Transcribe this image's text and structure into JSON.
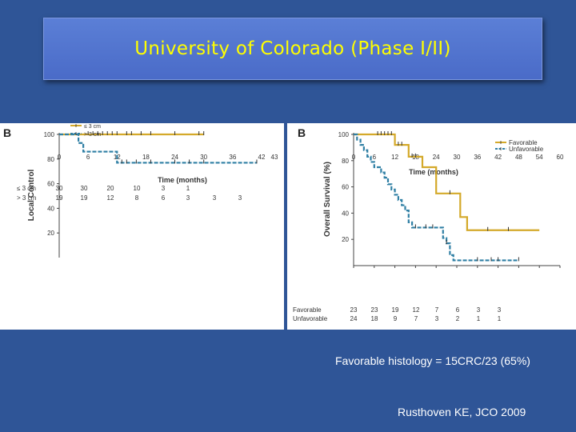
{
  "slide": {
    "title": "University of Colorado (Phase I/II)",
    "caption_histology": "Favorable histology = 15CRC/23 (65%)",
    "caption_citation": "Rusthoven KE, JCO 2009"
  },
  "colors": {
    "background": "#2f5597",
    "title_text": "#ffff00",
    "series_gold": "#d4a92a",
    "series_blue": "#2f7fa4"
  },
  "chart_data": [
    {
      "type": "line",
      "panel_label": "B",
      "title": "",
      "xlabel": "Time (months)",
      "ylabel": "Local Control",
      "xlim": [
        0,
        43
      ],
      "ylim": [
        0,
        100
      ],
      "x_ticks": [
        0,
        6,
        12,
        18,
        24,
        30,
        36,
        42,
        43
      ],
      "y_ticks": [
        20,
        40,
        60,
        80,
        100
      ],
      "legend_position": "bottom-left",
      "series": [
        {
          "name": "≤ 3 cm",
          "color": "#d4a92a",
          "style": "solid",
          "steps": [
            [
              0,
              100
            ],
            [
              30,
              100
            ]
          ],
          "censor": [
            6,
            7,
            8,
            9,
            10,
            11,
            12,
            14,
            15,
            17,
            19,
            24,
            29,
            30
          ]
        },
        {
          "name": "> 3 cm",
          "color": "#2f7fa4",
          "style": "dashed",
          "steps": [
            [
              0,
              100
            ],
            [
              4,
              93
            ],
            [
              5,
              86
            ],
            [
              11,
              86
            ],
            [
              12,
              77
            ],
            [
              41,
              77
            ]
          ],
          "censor": [
            13,
            14,
            16,
            19,
            24,
            27,
            30,
            41
          ]
        }
      ],
      "at_risk": {
        "rows": [
          {
            "label": "≤ 3 cm",
            "values": [
              "30",
              "30",
              "20",
              "10",
              "3",
              "1",
              "",
              ""
            ]
          },
          {
            "label": "> 3 cm",
            "values": [
              "19",
              "19",
              "12",
              "8",
              "6",
              "3",
              "3",
              "3"
            ]
          }
        ]
      }
    },
    {
      "type": "line",
      "panel_label": "B",
      "title": "",
      "xlabel": "Time (months)",
      "ylabel": "Overall Survival (%)",
      "xlim": [
        0,
        60
      ],
      "ylim": [
        0,
        100
      ],
      "x_ticks": [
        0,
        6,
        12,
        18,
        24,
        30,
        36,
        42,
        48,
        54,
        60
      ],
      "y_ticks": [
        20,
        40,
        60,
        80,
        100
      ],
      "legend_position": "top-right",
      "series": [
        {
          "name": "Favorable",
          "color": "#d4a92a",
          "style": "solid",
          "steps": [
            [
              0,
              100
            ],
            [
              11,
              100
            ],
            [
              12,
              92
            ],
            [
              15,
              92
            ],
            [
              16,
              83
            ],
            [
              19,
              83
            ],
            [
              20,
              75
            ],
            [
              23,
              75
            ],
            [
              24,
              55
            ],
            [
              30,
              55
            ],
            [
              31,
              37
            ],
            [
              32,
              37
            ],
            [
              33,
              27
            ],
            [
              54,
              27
            ]
          ],
          "censor": [
            7,
            8,
            9,
            10,
            11,
            13,
            14,
            17,
            18,
            28,
            39,
            45
          ]
        },
        {
          "name": "Unfavorable",
          "color": "#2f7fa4",
          "style": "dashed",
          "steps": [
            [
              0,
              100
            ],
            [
              1,
              96
            ],
            [
              2,
              92
            ],
            [
              3,
              88
            ],
            [
              4,
              83
            ],
            [
              5,
              79
            ],
            [
              6,
              75
            ],
            [
              8,
              71
            ],
            [
              9,
              67
            ],
            [
              10,
              62
            ],
            [
              11,
              58
            ],
            [
              12,
              54
            ],
            [
              13,
              50
            ],
            [
              14,
              46
            ],
            [
              15,
              42
            ],
            [
              16,
              33
            ],
            [
              17,
              29
            ],
            [
              25,
              29
            ],
            [
              26,
              21
            ],
            [
              27,
              17
            ],
            [
              28,
              8
            ],
            [
              29,
              4
            ],
            [
              48,
              4
            ]
          ],
          "censor": [
            18,
            21,
            23,
            27,
            36,
            40,
            42,
            48
          ]
        }
      ],
      "at_risk": {
        "rows": [
          {
            "label": "Favorable",
            "values": [
              "23",
              "23",
              "19",
              "12",
              "7",
              "6",
              "3",
              "3"
            ]
          },
          {
            "label": "Unfavorable",
            "values": [
              "24",
              "18",
              "9",
              "7",
              "3",
              "2",
              "1",
              "1"
            ]
          }
        ]
      }
    }
  ]
}
